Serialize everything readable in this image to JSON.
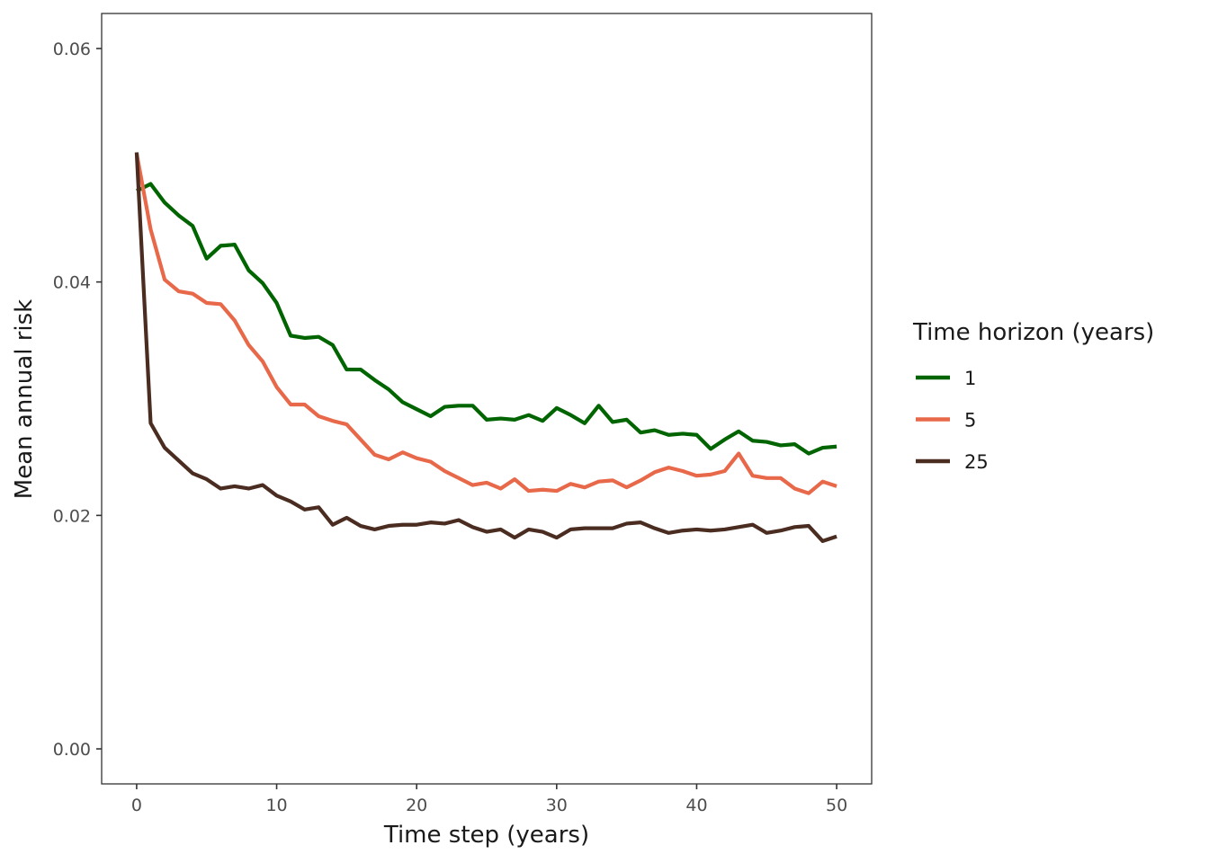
{
  "chart_data": {
    "type": "line",
    "xlabel": "Time step (years)",
    "ylabel": "Mean annual risk",
    "xlim": [
      -2.5,
      52.5
    ],
    "ylim": [
      -0.003,
      0.063
    ],
    "xticks": [
      0,
      10,
      20,
      30,
      40,
      50
    ],
    "xtick_labels": [
      "0",
      "10",
      "20",
      "30",
      "40",
      "50"
    ],
    "yticks": [
      0,
      0.02,
      0.04,
      0.06
    ],
    "ytick_labels": [
      "0.00",
      "0.02",
      "0.04",
      "0.06"
    ],
    "grid": false,
    "legend": {
      "title": "Time horizon (years)",
      "position": "right"
    },
    "x": [
      0,
      1,
      2,
      3,
      4,
      5,
      6,
      7,
      8,
      9,
      10,
      11,
      12,
      13,
      14,
      15,
      16,
      17,
      18,
      19,
      20,
      21,
      22,
      23,
      24,
      25,
      26,
      27,
      28,
      29,
      30,
      31,
      32,
      33,
      34,
      35,
      36,
      37,
      38,
      39,
      40,
      41,
      42,
      43,
      44,
      45,
      46,
      47,
      48,
      49,
      50
    ],
    "series": [
      {
        "name": "1",
        "color": "#006400",
        "values": [
          0.0478,
          0.0484,
          0.0468,
          0.0457,
          0.0448,
          0.042,
          0.0431,
          0.0432,
          0.041,
          0.0399,
          0.0382,
          0.0354,
          0.0352,
          0.0353,
          0.0346,
          0.0325,
          0.0325,
          0.0316,
          0.0308,
          0.0297,
          0.0291,
          0.0285,
          0.0293,
          0.0294,
          0.0294,
          0.0282,
          0.0283,
          0.0282,
          0.0286,
          0.0281,
          0.0292,
          0.0286,
          0.0279,
          0.0294,
          0.028,
          0.0282,
          0.0271,
          0.0273,
          0.0269,
          0.027,
          0.0269,
          0.0257,
          0.0265,
          0.0272,
          0.0264,
          0.0263,
          0.026,
          0.0261,
          0.0253,
          0.0258,
          0.0259
        ]
      },
      {
        "name": "5",
        "color": "#E8684A",
        "values": [
          0.051,
          0.0445,
          0.0402,
          0.0392,
          0.039,
          0.0382,
          0.0381,
          0.0367,
          0.0346,
          0.0332,
          0.031,
          0.0295,
          0.0295,
          0.0285,
          0.0281,
          0.0278,
          0.0265,
          0.0252,
          0.0248,
          0.0254,
          0.0249,
          0.0246,
          0.0238,
          0.0232,
          0.0226,
          0.0228,
          0.0223,
          0.0231,
          0.0221,
          0.0222,
          0.0221,
          0.0227,
          0.0224,
          0.0229,
          0.023,
          0.0224,
          0.023,
          0.0237,
          0.0241,
          0.0238,
          0.0234,
          0.0235,
          0.0238,
          0.0253,
          0.0234,
          0.0232,
          0.0232,
          0.0223,
          0.0219,
          0.0229,
          0.0225
        ]
      },
      {
        "name": "25",
        "color": "#4A2C20",
        "values": [
          0.0511,
          0.0279,
          0.0258,
          0.0247,
          0.0236,
          0.0231,
          0.0223,
          0.0225,
          0.0223,
          0.0226,
          0.0217,
          0.0212,
          0.0205,
          0.0207,
          0.0192,
          0.0198,
          0.0191,
          0.0188,
          0.0191,
          0.0192,
          0.0192,
          0.0194,
          0.0193,
          0.0196,
          0.019,
          0.0186,
          0.0188,
          0.0181,
          0.0188,
          0.0186,
          0.0181,
          0.0188,
          0.0189,
          0.0189,
          0.0189,
          0.0193,
          0.0194,
          0.0189,
          0.0185,
          0.0187,
          0.0188,
          0.0187,
          0.0188,
          0.019,
          0.0192,
          0.0185,
          0.0187,
          0.019,
          0.0191,
          0.0178,
          0.0182
        ]
      }
    ]
  }
}
